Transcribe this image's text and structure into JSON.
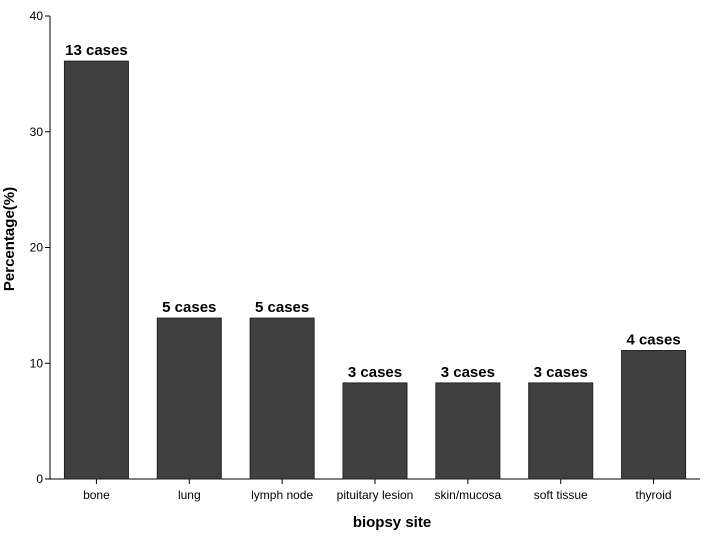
{
  "chart_data": {
    "type": "bar",
    "categories": [
      "bone",
      "lung",
      "lymph node",
      "pituitary lesion",
      "skin/mucosa",
      "soft tissue",
      "thyroid"
    ],
    "values": [
      36.1,
      13.9,
      13.9,
      8.3,
      8.3,
      8.3,
      11.1
    ],
    "data_labels": [
      "13 cases",
      "5 cases",
      "5 cases",
      "3 cases",
      "3 cases",
      "3  cases",
      "4 cases"
    ],
    "xlabel": "biopsy site",
    "ylabel": "Percentage(%)",
    "ylim": [
      0,
      40
    ],
    "yticks": [
      0,
      10,
      20,
      30,
      40
    ],
    "ytick_labels": [
      "0",
      "10",
      "20",
      "30",
      "40"
    ],
    "grid": false,
    "bar_color": "#404040",
    "bar_outline_color": "#222222"
  }
}
